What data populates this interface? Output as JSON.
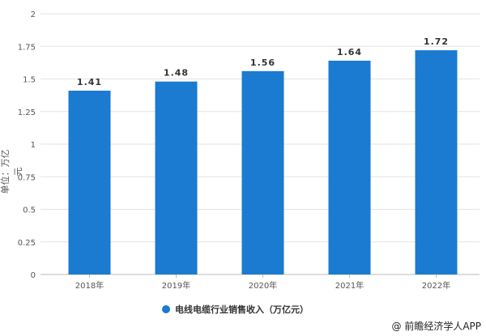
{
  "chart_data": {
    "type": "bar",
    "categories": [
      "2018年",
      "2019年",
      "2020年",
      "2021年",
      "2022年"
    ],
    "series": [
      {
        "name": "电线电缆行业销售收入（万亿元）",
        "values": [
          1.41,
          1.48,
          1.56,
          1.64,
          1.72
        ]
      }
    ],
    "data_labels": [
      "1.41",
      "1.48",
      "1.56",
      "1.64",
      "1.72"
    ],
    "ylabel": "单位：万亿元",
    "xlabel": "",
    "ylim": [
      0,
      2
    ],
    "yticks": [
      "0",
      "0.25",
      "0.5",
      "0.75",
      "1",
      "1.25",
      "1.5",
      "1.75",
      "2"
    ],
    "grid": true,
    "legend_position": "bottom",
    "colors": {
      "bar": "#1a7bd0",
      "grid": "#e3e3e3"
    }
  },
  "credit": "@ 前瞻经济学人APP"
}
